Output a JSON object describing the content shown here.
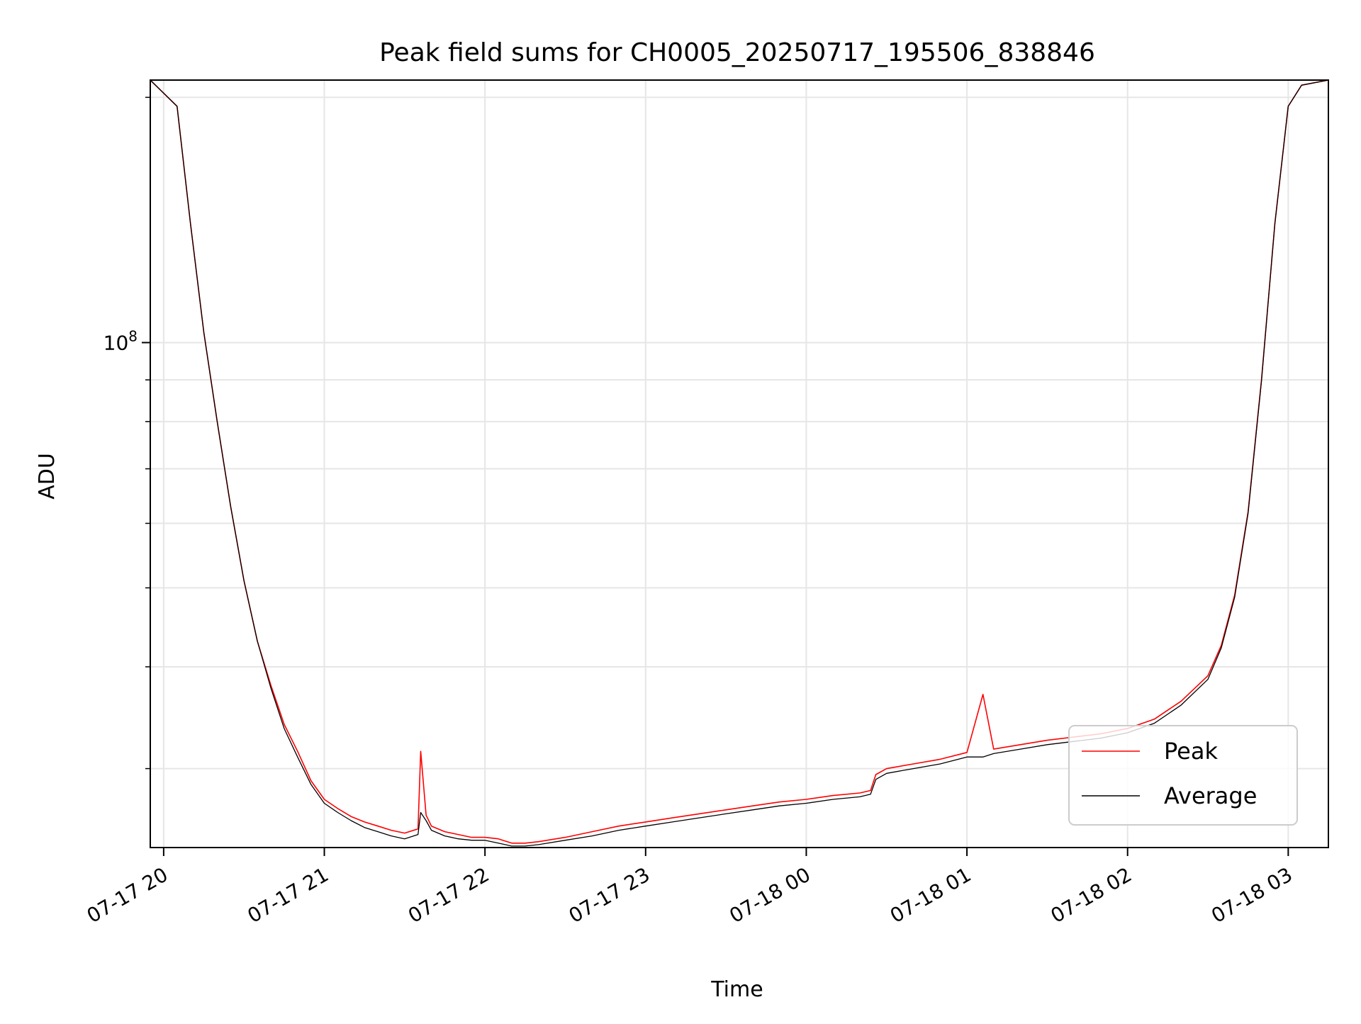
{
  "chart_data": {
    "type": "line",
    "title": "Peak field sums for CH0005_20250717_195506_838846",
    "xlabel": "Time",
    "ylabel": "ADU",
    "yscale": "log",
    "grid": true,
    "legend_position": "bottom-right",
    "xlim": [
      "2025-07-17 19:55",
      "2025-07-18 03:15"
    ],
    "ylim": [
      24000000,
      210000000
    ],
    "x_ticks": [
      {
        "value": "2025-07-17 20:00",
        "label": "07-17 20"
      },
      {
        "value": "2025-07-17 21:00",
        "label": "07-17 21"
      },
      {
        "value": "2025-07-17 22:00",
        "label": "07-17 22"
      },
      {
        "value": "2025-07-17 23:00",
        "label": "07-17 23"
      },
      {
        "value": "2025-07-18 00:00",
        "label": "07-18 00"
      },
      {
        "value": "2025-07-18 01:00",
        "label": "07-18 01"
      },
      {
        "value": "2025-07-18 02:00",
        "label": "07-18 02"
      },
      {
        "value": "2025-07-18 03:00",
        "label": "07-18 03"
      }
    ],
    "y_major_tick": {
      "value": 100000000,
      "label_base": "10",
      "label_exp": "8"
    },
    "y_minor_ticks": [
      30000000,
      40000000,
      50000000,
      60000000,
      70000000,
      80000000,
      90000000,
      200000000
    ],
    "x": [
      "2025-07-17 19:55",
      "2025-07-17 20:05",
      "2025-07-17 20:10",
      "2025-07-17 20:15",
      "2025-07-17 20:20",
      "2025-07-17 20:25",
      "2025-07-17 20:30",
      "2025-07-17 20:35",
      "2025-07-17 20:40",
      "2025-07-17 20:45",
      "2025-07-17 20:50",
      "2025-07-17 20:55",
      "2025-07-17 21:00",
      "2025-07-17 21:05",
      "2025-07-17 21:10",
      "2025-07-17 21:15",
      "2025-07-17 21:20",
      "2025-07-17 21:25",
      "2025-07-17 21:30",
      "2025-07-17 21:35",
      "2025-07-17 21:36",
      "2025-07-17 21:38",
      "2025-07-17 21:40",
      "2025-07-17 21:45",
      "2025-07-17 21:50",
      "2025-07-17 21:55",
      "2025-07-17 22:00",
      "2025-07-17 22:05",
      "2025-07-17 22:10",
      "2025-07-17 22:15",
      "2025-07-17 22:20",
      "2025-07-17 22:30",
      "2025-07-17 22:40",
      "2025-07-17 22:50",
      "2025-07-17 23:00",
      "2025-07-17 23:10",
      "2025-07-17 23:20",
      "2025-07-17 23:30",
      "2025-07-17 23:40",
      "2025-07-17 23:50",
      "2025-07-18 00:00",
      "2025-07-18 00:10",
      "2025-07-18 00:20",
      "2025-07-18 00:24",
      "2025-07-18 00:26",
      "2025-07-18 00:30",
      "2025-07-18 00:40",
      "2025-07-18 00:50",
      "2025-07-18 01:00",
      "2025-07-18 01:06",
      "2025-07-18 01:10",
      "2025-07-18 01:20",
      "2025-07-18 01:30",
      "2025-07-18 01:40",
      "2025-07-18 01:50",
      "2025-07-18 02:00",
      "2025-07-18 02:10",
      "2025-07-18 02:20",
      "2025-07-18 02:30",
      "2025-07-18 02:35",
      "2025-07-18 02:40",
      "2025-07-18 02:45",
      "2025-07-18 02:50",
      "2025-07-18 02:55",
      "2025-07-18 03:00",
      "2025-07-18 03:05",
      "2025-07-18 03:15"
    ],
    "series": [
      {
        "name": "Peak",
        "color": "#ff0000",
        "values": [
          210000000,
          195000000,
          140000000,
          103000000,
          80000000,
          63000000,
          51000000,
          43000000,
          38000000,
          34000000,
          31500000,
          29000000,
          27500000,
          26800000,
          26200000,
          25800000,
          25500000,
          25200000,
          25000000,
          25300000,
          31500000,
          26300000,
          25500000,
          25100000,
          24900000,
          24700000,
          24700000,
          24600000,
          24300000,
          24300000,
          24400000,
          24700000,
          25100000,
          25500000,
          25800000,
          26100000,
          26400000,
          26700000,
          27000000,
          27300000,
          27500000,
          27800000,
          28000000,
          28200000,
          29500000,
          30000000,
          30400000,
          30800000,
          31400000,
          37000000,
          31700000,
          32100000,
          32500000,
          32800000,
          33100000,
          33600000,
          34500000,
          36300000,
          39000000,
          42500000,
          49000000,
          62000000,
          90000000,
          140000000,
          195000000,
          207000000,
          210000000
        ]
      },
      {
        "name": "Average",
        "color": "#000000",
        "values": [
          210000000,
          195000000,
          140000000,
          103000000,
          80000000,
          63000000,
          51000000,
          43000000,
          37700000,
          33600000,
          31000000,
          28700000,
          27200000,
          26500000,
          25900000,
          25400000,
          25100000,
          24800000,
          24600000,
          24900000,
          26500000,
          25900000,
          25200000,
          24800000,
          24600000,
          24500000,
          24500000,
          24300000,
          24100000,
          24100000,
          24200000,
          24500000,
          24800000,
          25200000,
          25500000,
          25800000,
          26100000,
          26400000,
          26700000,
          27000000,
          27200000,
          27500000,
          27700000,
          27900000,
          29100000,
          29600000,
          30000000,
          30400000,
          31000000,
          31000000,
          31300000,
          31700000,
          32100000,
          32400000,
          32700000,
          33200000,
          34100000,
          35900000,
          38600000,
          42200000,
          48700000,
          61700000,
          89700000,
          140000000,
          195000000,
          207000000,
          210000000
        ]
      }
    ]
  }
}
